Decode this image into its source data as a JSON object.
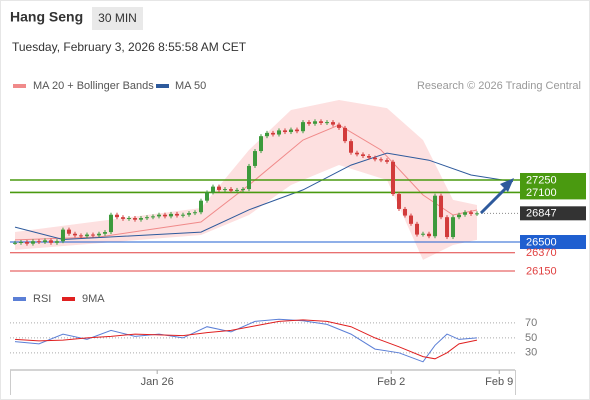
{
  "header": {
    "title": "Hang Seng",
    "timeframe": "30 MIN",
    "date": "Tuesday, February 3, 2026 8:55:58 AM CET",
    "source": "Research © 2026 Trading Central"
  },
  "chart_data": [
    {
      "type": "candlestick",
      "xlim": [
        -0.83,
        83.33
      ],
      "ylim": [
        25980,
        28278
      ],
      "up_color": "#3c9a3c",
      "down_color": "#d23b3b",
      "close": [
        26490,
        26500,
        26480,
        26510,
        26500,
        26520,
        26490,
        26510,
        26650,
        26600,
        26580,
        26570,
        26590,
        26580,
        26600,
        26620,
        26830,
        26800,
        26780,
        26790,
        26770,
        26790,
        26800,
        26810,
        26830,
        26810,
        26840,
        26820,
        26830,
        26850,
        26860,
        27000,
        27100,
        27170,
        27130,
        27140,
        27120,
        27130,
        27140,
        27420,
        27600,
        27780,
        27820,
        27800,
        27850,
        27830,
        27860,
        27840,
        27950,
        27930,
        27960,
        27940,
        27950,
        27920,
        27880,
        27720,
        27580,
        27560,
        27540,
        27520,
        27500,
        27490,
        27470,
        27080,
        26900,
        26820,
        26720,
        26590,
        26600,
        26570,
        27060,
        26800,
        26560,
        26800,
        26830,
        26860,
        26840,
        26847
      ],
      "series": [
        {
          "name": "MA 20 + Bollinger Bands",
          "color": "#f08a8a",
          "x": [
            0,
            14,
            31,
            39,
            48,
            54,
            61,
            68,
            73,
            77
          ],
          "values": [
            26525,
            26561,
            26742,
            27190,
            27734,
            27915,
            27613,
            27069,
            26827,
            26887
          ],
          "band": {
            "color": "#fde0e0",
            "x": [
              0,
              31,
              39,
              46,
              54,
              62,
              68,
              73,
              77
            ],
            "upper": [
              26621,
              26911,
              27613,
              28096,
              28217,
              28120,
              27734,
              27009,
              26948
            ],
            "lower": [
              26404,
              26585,
              26827,
              27190,
              27431,
              27250,
              26283,
              26464,
              26525
            ]
          }
        },
        {
          "name": "MA 50",
          "color": "#2e5a9c",
          "x": [
            0,
            8,
            31,
            39,
            48,
            56,
            62,
            69,
            76,
            83
          ],
          "values": [
            26680,
            26530,
            26620,
            26890,
            27130,
            27430,
            27575,
            27490,
            27310,
            27230
          ]
        }
      ],
      "levels": [
        {
          "value": 27250,
          "color": "#4a9a10",
          "label_box": true
        },
        {
          "value": 27100,
          "color": "#4a9a10",
          "label_box": true
        },
        {
          "value": 26847,
          "color": "#333333",
          "label_box": true,
          "dotted": true
        },
        {
          "value": 26500,
          "color": "#1f5fd0",
          "label_box": true
        },
        {
          "value": 26370,
          "color": "#e04040",
          "label_box": false
        },
        {
          "value": 26150,
          "color": "#e04040",
          "label_box": false
        }
      ]
    },
    {
      "type": "line",
      "xlim": [
        -0.83,
        83.33
      ],
      "ylim": [
        7,
        94
      ],
      "yticks": [
        70,
        50,
        30
      ],
      "grid": true,
      "xticks": [
        {
          "value": 23.7,
          "label": "Jan 26"
        },
        {
          "value": 62.7,
          "label": "Feb 2"
        },
        {
          "value": 80.7,
          "label": "Feb 9"
        }
      ],
      "x": [
        0,
        4,
        8,
        12,
        16,
        20,
        24,
        28,
        32,
        36,
        40,
        44,
        48,
        52,
        56,
        60,
        64,
        68,
        70,
        72,
        74,
        77
      ],
      "series": [
        {
          "name": "RSI",
          "color": "#5b7fd6",
          "values": [
            45,
            42,
            55,
            48,
            60,
            52,
            55,
            50,
            65,
            58,
            72,
            75,
            73,
            68,
            55,
            35,
            30,
            18,
            40,
            55,
            48,
            50
          ]
        },
        {
          "name": "9MA",
          "color": "#e02020",
          "values": [
            48,
            46,
            47,
            50,
            52,
            55,
            54,
            53,
            57,
            60,
            66,
            72,
            74,
            72,
            65,
            50,
            38,
            25,
            22,
            30,
            42,
            47
          ]
        }
      ]
    }
  ]
}
